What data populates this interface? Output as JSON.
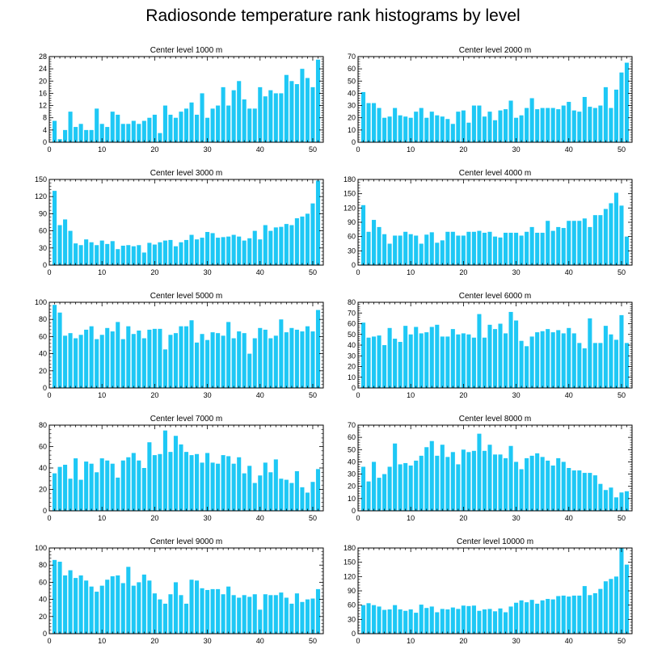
{
  "title": "Radiosonde temperature rank histograms by level",
  "bar_color": "#1ec8f5",
  "chart_data": [
    {
      "type": "bar",
      "title": "Center level 1000 m",
      "x_ticks": [
        0,
        10,
        20,
        30,
        40,
        50
      ],
      "y_ticks": [
        0,
        4,
        8,
        12,
        16,
        20,
        24,
        28
      ],
      "xlim": [
        0,
        52
      ],
      "ylim": [
        0,
        28
      ],
      "categories": [
        1,
        2,
        3,
        4,
        5,
        6,
        7,
        8,
        9,
        10,
        11,
        12,
        13,
        14,
        15,
        16,
        17,
        18,
        19,
        20,
        21,
        22,
        23,
        24,
        25,
        26,
        27,
        28,
        29,
        30,
        31,
        32,
        33,
        34,
        35,
        36,
        37,
        38,
        39,
        40,
        41,
        42,
        43,
        44,
        45,
        46,
        47,
        48,
        49,
        50,
        51
      ],
      "values": [
        7,
        1,
        4,
        10,
        5,
        6,
        4,
        4,
        11,
        6,
        5,
        10,
        9,
        6,
        6,
        7,
        6,
        7,
        8,
        9,
        3,
        12,
        9,
        8,
        10,
        11,
        13,
        9,
        16,
        8,
        11,
        12,
        18,
        12,
        17,
        20,
        14,
        11,
        11,
        18,
        15,
        17,
        16,
        16,
        22,
        20,
        19,
        24,
        21,
        18,
        27
      ]
    },
    {
      "type": "bar",
      "title": "Center level 2000 m",
      "x_ticks": [
        0,
        10,
        20,
        30,
        40,
        50
      ],
      "y_ticks": [
        0,
        10,
        20,
        30,
        40,
        50,
        60,
        70
      ],
      "xlim": [
        0,
        52
      ],
      "ylim": [
        0,
        70
      ],
      "categories": [
        1,
        2,
        3,
        4,
        5,
        6,
        7,
        8,
        9,
        10,
        11,
        12,
        13,
        14,
        15,
        16,
        17,
        18,
        19,
        20,
        21,
        22,
        23,
        24,
        25,
        26,
        27,
        28,
        29,
        30,
        31,
        32,
        33,
        34,
        35,
        36,
        37,
        38,
        39,
        40,
        41,
        42,
        43,
        44,
        45,
        46,
        47,
        48,
        49,
        50,
        51
      ],
      "values": [
        41,
        32,
        32,
        28,
        20,
        21,
        28,
        22,
        21,
        20,
        25,
        28,
        20,
        25,
        22,
        21,
        19,
        15,
        25,
        26,
        16,
        30,
        30,
        21,
        25,
        18,
        26,
        27,
        34,
        20,
        22,
        28,
        36,
        27,
        28,
        28,
        28,
        27,
        30,
        33,
        26,
        25,
        37,
        29,
        28,
        30,
        45,
        28,
        43,
        57,
        65
      ]
    },
    {
      "type": "bar",
      "title": "Center level 3000 m",
      "x_ticks": [
        0,
        10,
        20,
        30,
        40,
        50
      ],
      "y_ticks": [
        0,
        30,
        60,
        90,
        120,
        150
      ],
      "xlim": [
        0,
        52
      ],
      "ylim": [
        0,
        150
      ],
      "categories": [
        1,
        2,
        3,
        4,
        5,
        6,
        7,
        8,
        9,
        10,
        11,
        12,
        13,
        14,
        15,
        16,
        17,
        18,
        19,
        20,
        21,
        22,
        23,
        24,
        25,
        26,
        27,
        28,
        29,
        30,
        31,
        32,
        33,
        34,
        35,
        36,
        37,
        38,
        39,
        40,
        41,
        42,
        43,
        44,
        45,
        46,
        47,
        48,
        49,
        50,
        51
      ],
      "values": [
        130,
        70,
        80,
        60,
        38,
        35,
        45,
        40,
        35,
        43,
        37,
        42,
        28,
        34,
        35,
        33,
        35,
        22,
        39,
        36,
        40,
        43,
        44,
        33,
        40,
        44,
        53,
        45,
        48,
        58,
        56,
        48,
        49,
        50,
        53,
        50,
        43,
        47,
        60,
        45,
        70,
        60,
        66,
        67,
        72,
        70,
        82,
        85,
        90,
        108,
        148
      ]
    },
    {
      "type": "bar",
      "title": "Center level 4000 m",
      "x_ticks": [
        0,
        10,
        20,
        30,
        40,
        50
      ],
      "y_ticks": [
        0,
        30,
        60,
        90,
        120,
        150,
        180
      ],
      "xlim": [
        0,
        52
      ],
      "ylim": [
        0,
        180
      ],
      "categories": [
        1,
        2,
        3,
        4,
        5,
        6,
        7,
        8,
        9,
        10,
        11,
        12,
        13,
        14,
        15,
        16,
        17,
        18,
        19,
        20,
        21,
        22,
        23,
        24,
        25,
        26,
        27,
        28,
        29,
        30,
        31,
        32,
        33,
        34,
        35,
        36,
        37,
        38,
        39,
        40,
        41,
        42,
        43,
        44,
        45,
        46,
        47,
        48,
        49,
        50,
        51
      ],
      "values": [
        126,
        70,
        95,
        80,
        65,
        45,
        62,
        62,
        70,
        65,
        62,
        45,
        64,
        69,
        47,
        52,
        70,
        70,
        62,
        62,
        70,
        70,
        72,
        68,
        70,
        60,
        58,
        68,
        68,
        68,
        62,
        70,
        80,
        68,
        68,
        93,
        72,
        80,
        78,
        93,
        93,
        93,
        98,
        80,
        105,
        105,
        118,
        130,
        152,
        125,
        60
      ]
    },
    {
      "type": "bar",
      "title": "Center level 5000 m",
      "x_ticks": [
        0,
        10,
        20,
        30,
        40,
        50
      ],
      "y_ticks": [
        0,
        20,
        40,
        60,
        80,
        100
      ],
      "xlim": [
        0,
        52
      ],
      "ylim": [
        0,
        100
      ],
      "categories": [
        1,
        2,
        3,
        4,
        5,
        6,
        7,
        8,
        9,
        10,
        11,
        12,
        13,
        14,
        15,
        16,
        17,
        18,
        19,
        20,
        21,
        22,
        23,
        24,
        25,
        26,
        27,
        28,
        29,
        30,
        31,
        32,
        33,
        34,
        35,
        36,
        37,
        38,
        39,
        40,
        41,
        42,
        43,
        44,
        45,
        46,
        47,
        48,
        49,
        50,
        51
      ],
      "values": [
        97,
        88,
        61,
        64,
        58,
        62,
        68,
        72,
        57,
        62,
        70,
        66,
        77,
        57,
        72,
        63,
        67,
        58,
        68,
        69,
        69,
        45,
        62,
        64,
        72,
        72,
        79,
        53,
        63,
        56,
        65,
        64,
        61,
        77,
        58,
        66,
        64,
        40,
        58,
        70,
        68,
        58,
        61,
        80,
        65,
        70,
        68,
        66,
        72,
        66,
        91
      ]
    },
    {
      "type": "bar",
      "title": "Center level 6000 m",
      "x_ticks": [
        0,
        10,
        20,
        30,
        40,
        50
      ],
      "y_ticks": [
        0,
        10,
        20,
        30,
        40,
        50,
        60,
        70,
        80
      ],
      "xlim": [
        0,
        52
      ],
      "ylim": [
        0,
        80
      ],
      "categories": [
        1,
        2,
        3,
        4,
        5,
        6,
        7,
        8,
        9,
        10,
        11,
        12,
        13,
        14,
        15,
        16,
        17,
        18,
        19,
        20,
        21,
        22,
        23,
        24,
        25,
        26,
        27,
        28,
        29,
        30,
        31,
        32,
        33,
        34,
        35,
        36,
        37,
        38,
        39,
        40,
        41,
        42,
        43,
        44,
        45,
        46,
        47,
        48,
        49,
        50,
        51
      ],
      "values": [
        61,
        47,
        48,
        49,
        40,
        56,
        46,
        43,
        58,
        50,
        57,
        51,
        52,
        57,
        59,
        48,
        48,
        55,
        50,
        51,
        50,
        47,
        69,
        47,
        59,
        55,
        60,
        51,
        71,
        63,
        44,
        39,
        48,
        52,
        53,
        55,
        52,
        54,
        51,
        56,
        51,
        42,
        37,
        65,
        42,
        42,
        58,
        50,
        45,
        68,
        42
      ]
    },
    {
      "type": "bar",
      "title": "Center level 7000 m",
      "x_ticks": [
        0,
        10,
        20,
        30,
        40,
        50
      ],
      "y_ticks": [
        0,
        20,
        40,
        60,
        80
      ],
      "xlim": [
        0,
        52
      ],
      "ylim": [
        0,
        80
      ],
      "categories": [
        1,
        2,
        3,
        4,
        5,
        6,
        7,
        8,
        9,
        10,
        11,
        12,
        13,
        14,
        15,
        16,
        17,
        18,
        19,
        20,
        21,
        22,
        23,
        24,
        25,
        26,
        27,
        28,
        29,
        30,
        31,
        32,
        33,
        34,
        35,
        36,
        37,
        38,
        39,
        40,
        41,
        42,
        43,
        44,
        45,
        46,
        47,
        48,
        49,
        50,
        51
      ],
      "values": [
        35,
        41,
        43,
        30,
        49,
        29,
        46,
        44,
        36,
        49,
        47,
        44,
        31,
        47,
        50,
        54,
        47,
        40,
        64,
        52,
        53,
        75,
        55,
        70,
        62,
        55,
        52,
        53,
        45,
        54,
        45,
        44,
        52,
        51,
        44,
        50,
        35,
        42,
        26,
        33,
        45,
        36,
        48,
        30,
        29,
        26,
        37,
        22,
        17,
        27,
        39
      ]
    },
    {
      "type": "bar",
      "title": "Center level 8000 m",
      "x_ticks": [
        0,
        10,
        20,
        30,
        40,
        50
      ],
      "y_ticks": [
        0,
        10,
        20,
        30,
        40,
        50,
        60,
        70
      ],
      "xlim": [
        0,
        52
      ],
      "ylim": [
        0,
        70
      ],
      "categories": [
        1,
        2,
        3,
        4,
        5,
        6,
        7,
        8,
        9,
        10,
        11,
        12,
        13,
        14,
        15,
        16,
        17,
        18,
        19,
        20,
        21,
        22,
        23,
        24,
        25,
        26,
        27,
        28,
        29,
        30,
        31,
        32,
        33,
        34,
        35,
        36,
        37,
        38,
        39,
        40,
        41,
        42,
        43,
        44,
        45,
        46,
        47,
        48,
        49,
        50,
        51
      ],
      "values": [
        36,
        24,
        40,
        27,
        30,
        36,
        55,
        38,
        39,
        37,
        41,
        45,
        52,
        57,
        45,
        54,
        44,
        48,
        38,
        50,
        48,
        49,
        63,
        49,
        54,
        46,
        46,
        43,
        53,
        40,
        34,
        43,
        45,
        47,
        44,
        41,
        37,
        43,
        40,
        35,
        33,
        33,
        31,
        31,
        29,
        22,
        17,
        19,
        11,
        15,
        16
      ]
    },
    {
      "type": "bar",
      "title": "Center level 9000 m",
      "x_ticks": [
        0,
        10,
        20,
        30,
        40,
        50
      ],
      "y_ticks": [
        0,
        20,
        40,
        60,
        80,
        100
      ],
      "xlim": [
        0,
        52
      ],
      "ylim": [
        0,
        100
      ],
      "categories": [
        1,
        2,
        3,
        4,
        5,
        6,
        7,
        8,
        9,
        10,
        11,
        12,
        13,
        14,
        15,
        16,
        17,
        18,
        19,
        20,
        21,
        22,
        23,
        24,
        25,
        26,
        27,
        28,
        29,
        30,
        31,
        32,
        33,
        34,
        35,
        36,
        37,
        38,
        39,
        40,
        41,
        42,
        43,
        44,
        45,
        46,
        47,
        48,
        49,
        50,
        51
      ],
      "values": [
        86,
        84,
        68,
        74,
        65,
        68,
        62,
        55,
        49,
        56,
        63,
        67,
        68,
        59,
        78,
        56,
        60,
        69,
        62,
        47,
        40,
        35,
        46,
        60,
        45,
        35,
        63,
        62,
        53,
        51,
        52,
        52,
        46,
        55,
        45,
        42,
        45,
        43,
        46,
        28,
        46,
        45,
        45,
        48,
        42,
        35,
        47,
        37,
        40,
        41,
        52
      ]
    },
    {
      "type": "bar",
      "title": "Center level 10000 m",
      "x_ticks": [
        0,
        10,
        20,
        30,
        40,
        50
      ],
      "y_ticks": [
        0,
        30,
        60,
        90,
        120,
        150,
        180
      ],
      "xlim": [
        0,
        52
      ],
      "ylim": [
        0,
        180
      ],
      "categories": [
        1,
        2,
        3,
        4,
        5,
        6,
        7,
        8,
        9,
        10,
        11,
        12,
        13,
        14,
        15,
        16,
        17,
        18,
        19,
        20,
        21,
        22,
        23,
        24,
        25,
        26,
        27,
        28,
        29,
        30,
        31,
        32,
        33,
        34,
        35,
        36,
        37,
        38,
        39,
        40,
        41,
        42,
        43,
        44,
        45,
        46,
        47,
        48,
        49,
        50,
        51
      ],
      "values": [
        60,
        64,
        60,
        57,
        50,
        51,
        60,
        51,
        48,
        51,
        44,
        61,
        54,
        57,
        45,
        52,
        51,
        55,
        52,
        59,
        58,
        59,
        48,
        51,
        52,
        47,
        53,
        45,
        57,
        65,
        70,
        66,
        71,
        63,
        70,
        73,
        72,
        79,
        80,
        78,
        80,
        80,
        100,
        81,
        85,
        94,
        110,
        115,
        120,
        180,
        145
      ]
    }
  ]
}
